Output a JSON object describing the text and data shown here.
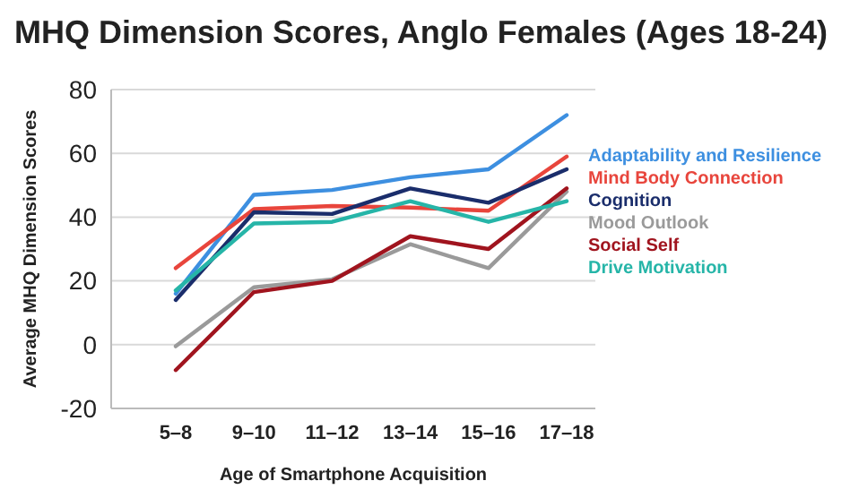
{
  "chart_data": {
    "type": "line",
    "title": "MHQ Dimension Scores, Anglo Females (Ages 18-24)",
    "xlabel": "Age of Smartphone Acquisition",
    "ylabel": "Average MHQ Dimension Scores",
    "categories": [
      "5–8",
      "9–10",
      "11–12",
      "13–14",
      "15–16",
      "17–18"
    ],
    "ylim": [
      -20,
      80
    ],
    "yticks": [
      -20,
      0,
      20,
      40,
      60,
      80
    ],
    "grid": "y",
    "legend": "right",
    "marker": "none",
    "line_style": "solid",
    "series": [
      {
        "name": "Adaptability and Resilience",
        "color": "#3d8fe0",
        "values": [
          16,
          47,
          48.5,
          52.5,
          55,
          72
        ]
      },
      {
        "name": "Mind Body Connection",
        "color": "#e8453c",
        "values": [
          24,
          42.5,
          43.5,
          43,
          42,
          59
        ]
      },
      {
        "name": "Cognition",
        "color": "#1a2d6b",
        "values": [
          14,
          41.5,
          41,
          49,
          44.5,
          55
        ]
      },
      {
        "name": "Mood Outlook",
        "color": "#9a9a9a",
        "values": [
          -0.5,
          18,
          20.5,
          31.5,
          24,
          48
        ]
      },
      {
        "name": "Social Self",
        "color": "#a0141e",
        "values": [
          -8,
          16.5,
          20,
          34,
          30,
          49
        ]
      },
      {
        "name": "Drive Motivation",
        "color": "#26b5a8",
        "values": [
          17,
          38,
          38.5,
          45,
          38.5,
          45
        ]
      }
    ]
  }
}
